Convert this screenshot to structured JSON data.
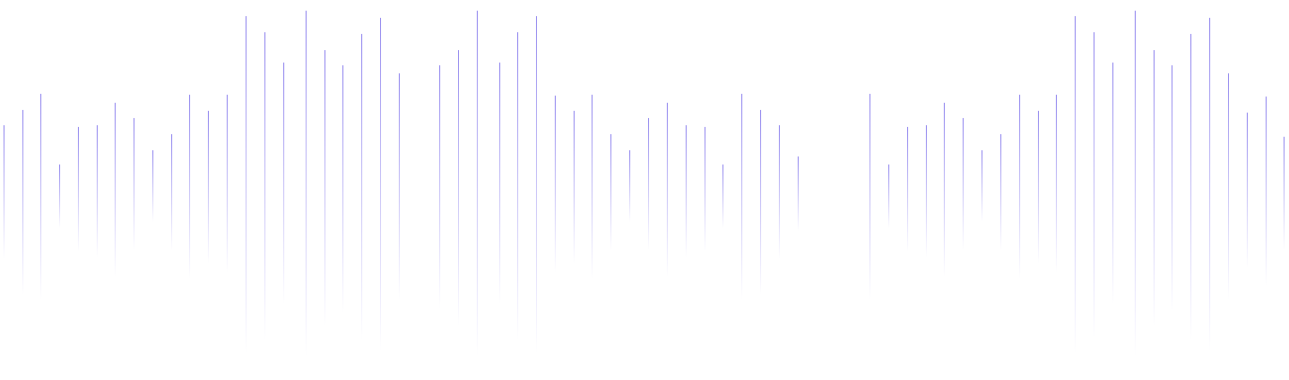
{
  "decoration": {
    "type": "vertical-line-waveform",
    "line_color": "#5b4be6",
    "background": "#ffffff",
    "fade": "top-to-bottom"
  }
}
